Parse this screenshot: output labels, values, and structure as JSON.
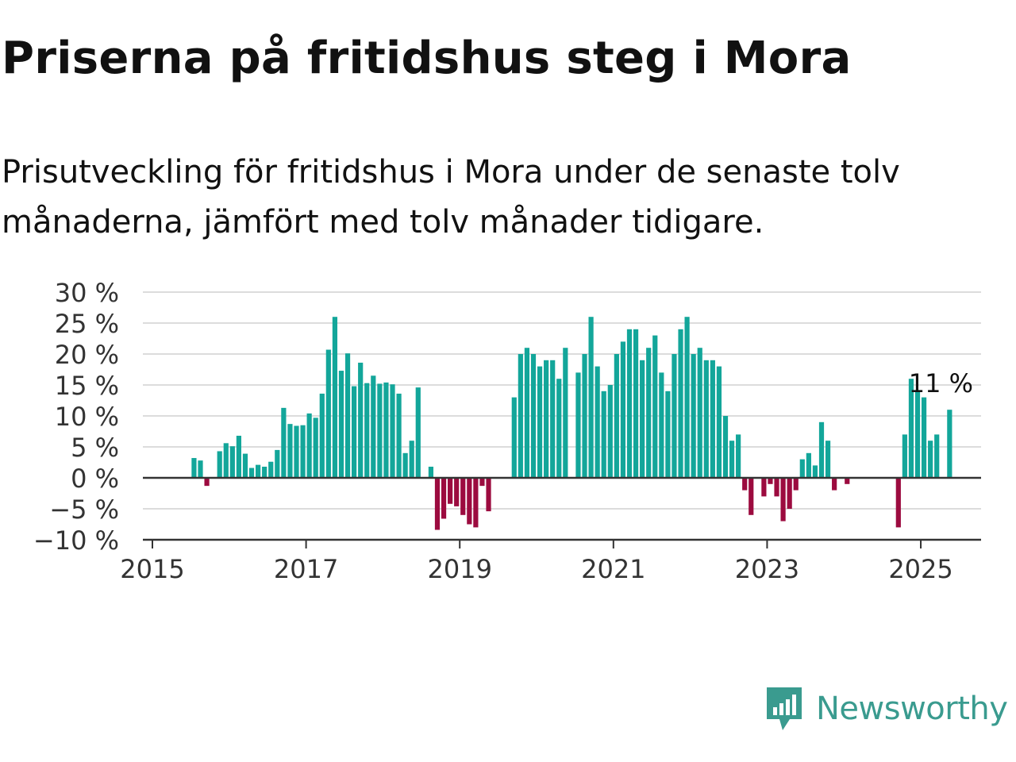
{
  "title": "Priserna på fritidshus steg i Mora",
  "subtitle": "Prisutveckling för fritidshus i Mora under de senaste tolv månaderna, jämfört med tolv månader tidigare.",
  "brand": {
    "name": "Newsworthy",
    "icon": "newsworthy-logo-icon",
    "color": "#3a9b8f"
  },
  "colors": {
    "positive": "#13a69a",
    "negative": "#9c0b3f",
    "grid": "#dcdcdc",
    "axis": "#333333",
    "text": "#333333"
  },
  "chart_data": {
    "type": "bar",
    "title": "Priserna på fritidshus steg i Mora",
    "subtitle": "Prisutveckling för fritidshus i Mora under de senaste tolv månaderna, jämfört med tolv månader tidigare.",
    "unit": "%",
    "ylim": [
      -10,
      30
    ],
    "y_ticks": [
      30,
      25,
      20,
      15,
      10,
      5,
      0,
      -5,
      -10
    ],
    "y_tick_labels": [
      "30 %",
      "25 %",
      "20 %",
      "15 %",
      "10 %",
      "5 %",
      "0 %",
      "−5 %",
      "−10 %"
    ],
    "x_ticks": [
      2015,
      2017,
      2019,
      2021,
      2023,
      2025
    ],
    "x_tick_labels": [
      "2015",
      "2017",
      "2019",
      "2021",
      "2023",
      "2025"
    ],
    "grid": true,
    "annotation": {
      "text": "11 %",
      "date": "2025-04",
      "value": 11
    },
    "series": [
      {
        "points": [
          {
            "date": "2015-07",
            "value": 3.2
          },
          {
            "date": "2015-08",
            "value": 2.8
          },
          {
            "date": "2015-09",
            "value": -1.3
          },
          {
            "date": "2015-11",
            "value": 4.3
          },
          {
            "date": "2015-12",
            "value": 5.6
          },
          {
            "date": "2016-01",
            "value": 5.1
          },
          {
            "date": "2016-02",
            "value": 6.8
          },
          {
            "date": "2016-03",
            "value": 3.9
          },
          {
            "date": "2016-04",
            "value": 1.6
          },
          {
            "date": "2016-05",
            "value": 2.1
          },
          {
            "date": "2016-06",
            "value": 1.8
          },
          {
            "date": "2016-07",
            "value": 2.6
          },
          {
            "date": "2016-08",
            "value": 4.5
          },
          {
            "date": "2016-09",
            "value": 11.3
          },
          {
            "date": "2016-10",
            "value": 8.7
          },
          {
            "date": "2016-11",
            "value": 8.4
          },
          {
            "date": "2016-12",
            "value": 8.5
          },
          {
            "date": "2017-01",
            "value": 10.4
          },
          {
            "date": "2017-02",
            "value": 9.7
          },
          {
            "date": "2017-03",
            "value": 13.6
          },
          {
            "date": "2017-04",
            "value": 20.7
          },
          {
            "date": "2017-05",
            "value": 26.0
          },
          {
            "date": "2017-06",
            "value": 17.3
          },
          {
            "date": "2017-07",
            "value": 20.1
          },
          {
            "date": "2017-08",
            "value": 14.8
          },
          {
            "date": "2017-09",
            "value": 18.6
          },
          {
            "date": "2017-10",
            "value": 15.3
          },
          {
            "date": "2017-11",
            "value": 16.5
          },
          {
            "date": "2017-12",
            "value": 15.2
          },
          {
            "date": "2018-01",
            "value": 15.4
          },
          {
            "date": "2018-02",
            "value": 15.1
          },
          {
            "date": "2018-03",
            "value": 13.6
          },
          {
            "date": "2018-04",
            "value": 4.0
          },
          {
            "date": "2018-05",
            "value": 6.0
          },
          {
            "date": "2018-06",
            "value": 14.6
          },
          {
            "date": "2018-08",
            "value": 1.8
          },
          {
            "date": "2018-09",
            "value": -8.4
          },
          {
            "date": "2018-10",
            "value": -6.6
          },
          {
            "date": "2018-11",
            "value": -4.2
          },
          {
            "date": "2018-12",
            "value": -4.6
          },
          {
            "date": "2019-01",
            "value": -6.0
          },
          {
            "date": "2019-02",
            "value": -7.5
          },
          {
            "date": "2019-03",
            "value": -8.0
          },
          {
            "date": "2019-04",
            "value": -1.3
          },
          {
            "date": "2019-05",
            "value": -5.4
          },
          {
            "date": "2019-09",
            "value": 13.0
          },
          {
            "date": "2019-10",
            "value": 20.0
          },
          {
            "date": "2019-11",
            "value": 21.0
          },
          {
            "date": "2019-12",
            "value": 20.0
          },
          {
            "date": "2020-01",
            "value": 18.0
          },
          {
            "date": "2020-02",
            "value": 19.0
          },
          {
            "date": "2020-03",
            "value": 19.0
          },
          {
            "date": "2020-04",
            "value": 16.0
          },
          {
            "date": "2020-05",
            "value": 21.0
          },
          {
            "date": "2020-07",
            "value": 17.0
          },
          {
            "date": "2020-08",
            "value": 20.0
          },
          {
            "date": "2020-09",
            "value": 26.0
          },
          {
            "date": "2020-10",
            "value": 18.0
          },
          {
            "date": "2020-11",
            "value": 14.0
          },
          {
            "date": "2020-12",
            "value": 15.0
          },
          {
            "date": "2021-01",
            "value": 20.0
          },
          {
            "date": "2021-02",
            "value": 22.0
          },
          {
            "date": "2021-03",
            "value": 24.0
          },
          {
            "date": "2021-04",
            "value": 24.0
          },
          {
            "date": "2021-05",
            "value": 19.0
          },
          {
            "date": "2021-06",
            "value": 21.0
          },
          {
            "date": "2021-07",
            "value": 23.0
          },
          {
            "date": "2021-08",
            "value": 17.0
          },
          {
            "date": "2021-09",
            "value": 14.0
          },
          {
            "date": "2021-10",
            "value": 20.0
          },
          {
            "date": "2021-11",
            "value": 24.0
          },
          {
            "date": "2021-12",
            "value": 26.0
          },
          {
            "date": "2022-01",
            "value": 20.0
          },
          {
            "date": "2022-02",
            "value": 21.0
          },
          {
            "date": "2022-03",
            "value": 19.0
          },
          {
            "date": "2022-04",
            "value": 19.0
          },
          {
            "date": "2022-05",
            "value": 18.0
          },
          {
            "date": "2022-06",
            "value": 10.0
          },
          {
            "date": "2022-07",
            "value": 6.0
          },
          {
            "date": "2022-08",
            "value": 7.0
          },
          {
            "date": "2022-09",
            "value": -2.0
          },
          {
            "date": "2022-10",
            "value": -6.0
          },
          {
            "date": "2022-12",
            "value": -3.0
          },
          {
            "date": "2023-01",
            "value": -1.0
          },
          {
            "date": "2023-02",
            "value": -3.0
          },
          {
            "date": "2023-03",
            "value": -7.0
          },
          {
            "date": "2023-04",
            "value": -5.0
          },
          {
            "date": "2023-05",
            "value": -2.0
          },
          {
            "date": "2023-06",
            "value": 3.0
          },
          {
            "date": "2023-07",
            "value": 4.0
          },
          {
            "date": "2023-08",
            "value": 2.0
          },
          {
            "date": "2023-09",
            "value": 9.0
          },
          {
            "date": "2023-10",
            "value": 6.0
          },
          {
            "date": "2023-11",
            "value": -2.0
          },
          {
            "date": "2024-01",
            "value": -1.0
          },
          {
            "date": "2024-09",
            "value": -8.0
          },
          {
            "date": "2024-10",
            "value": 7.0
          },
          {
            "date": "2024-11",
            "value": 16.0
          },
          {
            "date": "2024-12",
            "value": 14.0
          },
          {
            "date": "2025-01",
            "value": 13.0
          },
          {
            "date": "2025-02",
            "value": 6.0
          },
          {
            "date": "2025-03",
            "value": 7.0
          },
          {
            "date": "2025-05",
            "value": 11.0
          }
        ]
      }
    ]
  }
}
